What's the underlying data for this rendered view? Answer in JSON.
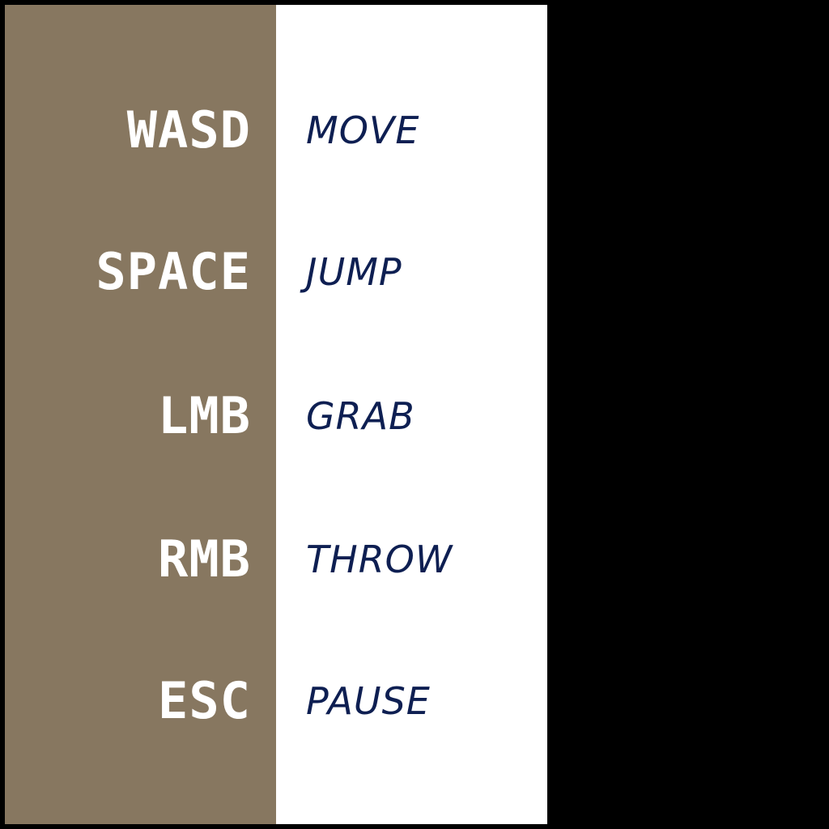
{
  "controls": [
    {
      "key": "WASD",
      "action": "MOVE"
    },
    {
      "key": "SPACE",
      "action": "JUMP"
    },
    {
      "key": "LMB",
      "action": "GRAB"
    },
    {
      "key": "RMB",
      "action": "THROW"
    },
    {
      "key": "ESC",
      "action": "PAUSE"
    }
  ],
  "colors": {
    "key_panel": "#877760",
    "action_panel": "#ffffff",
    "key_text": "#ffffff",
    "action_text": "#0e1f52",
    "background": "#000000"
  }
}
